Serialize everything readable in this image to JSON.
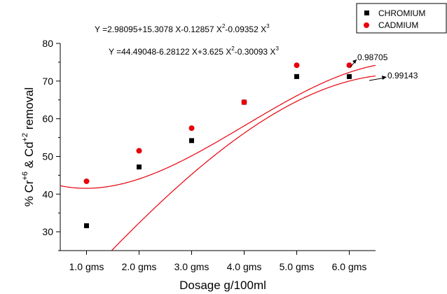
{
  "chart_data": {
    "type": "scatter",
    "categories": [
      "1.0 gms",
      "2.0 gms",
      "3.0 gms",
      "4.0 gms",
      "5.0 gms",
      "6.0 gms"
    ],
    "x": [
      1,
      2,
      3,
      4,
      5,
      6
    ],
    "xlim": [
      0.5,
      6.5
    ],
    "ylim": [
      25,
      80
    ],
    "yticks": [
      30,
      40,
      50,
      60,
      70,
      80
    ],
    "xlabel": "Dosage g/100ml",
    "ylabel": "% Cr+6 & Cd+2 removal",
    "grid": false,
    "legend_position": "top-right",
    "series": [
      {
        "name": "CHROMIUM",
        "marker": "square",
        "color": "#000000",
        "values": [
          31.6,
          47.2,
          54.2,
          64.4,
          71.2,
          71.2
        ],
        "fit": [
          2.98095,
          15.3078,
          -0.12857,
          -0.09352
        ],
        "r2": "0.99143"
      },
      {
        "name": "CADMIUM",
        "marker": "circle",
        "color": "#e8000b",
        "values": [
          43.4,
          51.5,
          57.5,
          64.4,
          74.2,
          74.2
        ],
        "fit": [
          44.49048,
          -6.28122,
          3.625,
          -0.30093
        ],
        "r2": "0.98705"
      }
    ],
    "fit_line_color": "#e8000b",
    "annotations": {
      "eq_chromium": "Y =2.98095+15.3078 X-0.12857 X",
      "eq_chromium_sup2": "2",
      "eq_chromium_mid": "-0.09352 X",
      "eq_chromium_sup3": "3",
      "eq_cadmium": "Y =44.49048-6.28122 X+3.625 X",
      "eq_cadmium_sup2": "2",
      "eq_cadmium_mid": "-0.30093 X",
      "eq_cadmium_sup3": "3"
    }
  }
}
